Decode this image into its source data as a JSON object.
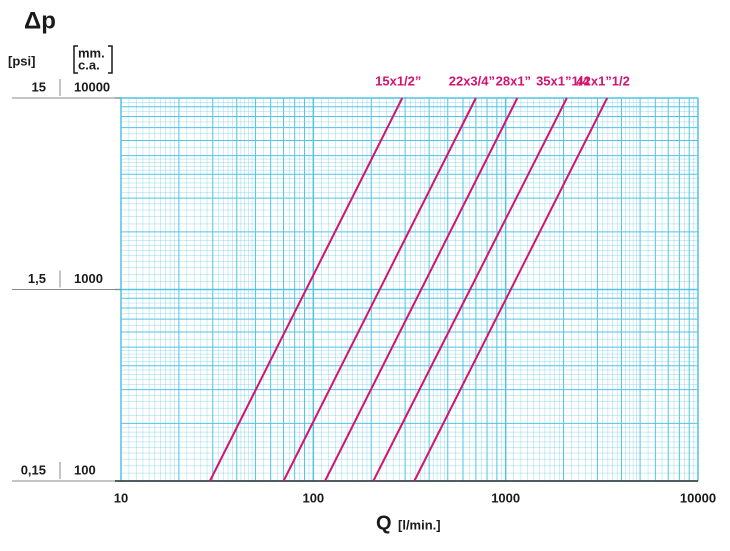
{
  "chart_data": {
    "type": "line",
    "title": "Δp",
    "y_label": [
      "mm.",
      "c.a."
    ],
    "y2_label": "[psi]",
    "x_label": "Q",
    "x_label_unit": "[l/min.]",
    "log_x": true,
    "log_y": true,
    "grid": true,
    "xlim": [
      10,
      10000
    ],
    "xticks": [
      10,
      100,
      1000,
      10000
    ],
    "ylim": [
      100,
      10000
    ],
    "yticks": [
      100,
      1000,
      10000
    ],
    "y2lim": [
      0.15,
      15
    ],
    "y2ticks": [
      {
        "value": 0.15,
        "label": "0,15"
      },
      {
        "value": 1.5,
        "label": "1,5"
      },
      {
        "value": 15,
        "label": "15"
      }
    ],
    "grid_color": "#52c3e3",
    "series": [
      {
        "name": "15x1/2”",
        "color": "#d4136f",
        "x": [
          29,
          290
        ],
        "values": [
          100,
          10000
        ]
      },
      {
        "name": "22x3/4”",
        "color": "#d4136f",
        "x": [
          70,
          700
        ],
        "values": [
          100,
          10000
        ]
      },
      {
        "name": "28x1”",
        "color": "#d4136f",
        "x": [
          115,
          1150
        ],
        "values": [
          100,
          10000
        ]
      },
      {
        "name": "35x1”1/4",
        "color": "#d4136f",
        "x": [
          205,
          2080
        ],
        "values": [
          100,
          10000
        ]
      },
      {
        "name": "42x1”1/2",
        "color": "#d4136f",
        "x": [
          335,
          3370
        ],
        "values": [
          100,
          10000
        ]
      }
    ]
  }
}
